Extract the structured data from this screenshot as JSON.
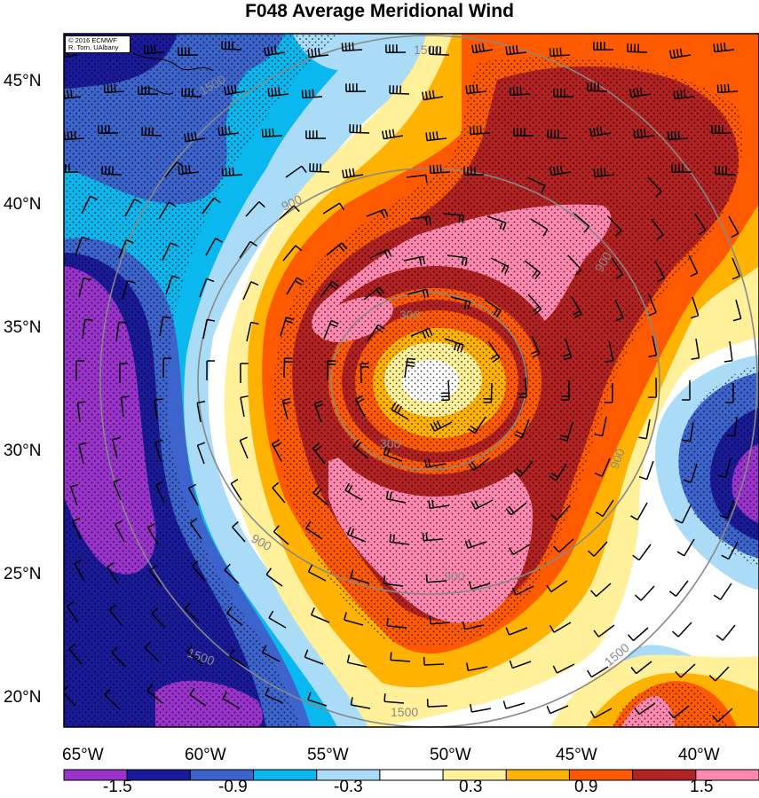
{
  "title": "F048 Average Meridional Wind",
  "credit": {
    "line1": "© 2016 ECMWF",
    "line2": "R. Torn, UAlbany"
  },
  "lat_ticks": [
    "45°N",
    "40°N",
    "35°N",
    "30°N",
    "25°N",
    "20°N"
  ],
  "lon_ticks": [
    "65°W",
    "60°W",
    "55°W",
    "50°W",
    "45°W",
    "40°W"
  ],
  "range_rings": {
    "unit_labels": [
      "1500",
      "1500",
      "900",
      "900",
      "900",
      "900",
      "300",
      "300",
      "900",
      "1500",
      "1500",
      "1500"
    ]
  },
  "colorbar": {
    "labels": [
      "-1.5",
      "-0.9",
      "-0.3",
      "0.3",
      "0.9",
      "1.5"
    ],
    "colors": [
      "#9933cc",
      "#1a1a99",
      "#3c64cc",
      "#08b8ee",
      "#aadcf8",
      "#ffffff",
      "#fff099",
      "#ffb300",
      "#ff5a00",
      "#b22222",
      "#ff88b0"
    ]
  },
  "palette": {
    "purple": "#9933cc",
    "navy": "#1a1a99",
    "blue": "#3c64cc",
    "cyan": "#08b8ee",
    "lightblue": "#aadcf8",
    "white": "#ffffff",
    "yellow": "#fff099",
    "orange": "#ffb300",
    "redorange": "#ff5a00",
    "darkred": "#b22222",
    "pink": "#ff88b0"
  }
}
